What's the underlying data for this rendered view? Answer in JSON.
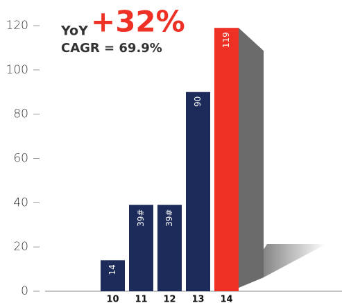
{
  "chart_data": {
    "type": "bar",
    "annotations": {
      "yoy_label": "YoY",
      "yoy_value": "+32%",
      "cagr": "CAGR = 69.9%"
    },
    "categories": [
      "10",
      "11",
      "12",
      "13",
      "14"
    ],
    "values": [
      14,
      39,
      39,
      90,
      119
    ],
    "value_labels": [
      "14",
      "39#",
      "39#",
      "90",
      "119"
    ],
    "colors": [
      "#1c2b5a",
      "#1c2b5a",
      "#1c2b5a",
      "#1c2b5a",
      "#ee3124"
    ],
    "ylim": [
      0,
      120
    ],
    "yticks": [
      0,
      20,
      40,
      60,
      80,
      100,
      120
    ]
  }
}
